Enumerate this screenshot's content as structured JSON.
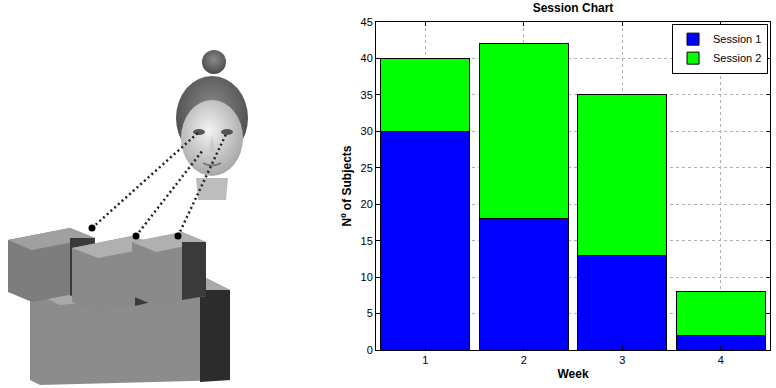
{
  "chart_data": {
    "type": "bar",
    "title": "Session Chart",
    "x_label": "Week",
    "y_label": "Nº of Subjects",
    "x": [
      1,
      2,
      3,
      4
    ],
    "xlim": [
      0.5,
      4.5
    ],
    "xticks": [
      1,
      2,
      3,
      4
    ],
    "ylim": [
      0,
      45
    ],
    "yticks": [
      0,
      5,
      10,
      15,
      20,
      25,
      30,
      35,
      40,
      45
    ],
    "series": [
      {
        "name": "Session 1",
        "color": "#0000ff",
        "values": [
          30,
          18,
          13,
          2
        ]
      },
      {
        "name": "Session 2",
        "color": "#00ff00",
        "values": [
          10,
          24,
          22,
          6
        ]
      }
    ],
    "stacked": true,
    "grid": true,
    "legend": "upper right"
  }
}
